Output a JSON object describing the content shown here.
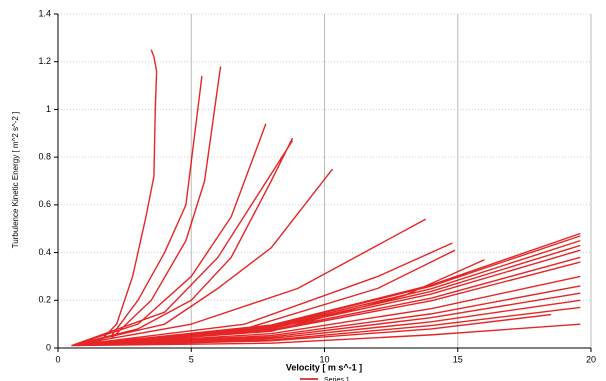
{
  "chart_data": {
    "type": "line",
    "xlabel": "Velocity [ m s^-1 ]",
    "ylabel": "Turbulence Kinetic Energy [ m^2 s^-2 ]",
    "xlim": [
      0,
      20
    ],
    "ylim": [
      0,
      1.4
    ],
    "xticks": [
      0,
      5,
      10,
      15,
      20
    ],
    "yticks": [
      0,
      0.2,
      0.4,
      0.6,
      0.8,
      1,
      1.2,
      1.4
    ],
    "grid": true,
    "legend": "bottom",
    "series": [
      {
        "name": "Series 1",
        "color": "#e00000",
        "x": [
          0.5,
          1.5,
          2.2,
          2.8,
          3.3,
          3.6,
          3.65,
          3.7,
          3.6,
          3.5,
          null,
          0.5,
          2,
          3,
          4,
          4.8,
          5.4,
          null,
          0.5,
          2,
          3.5,
          4.8,
          5.5,
          6.1,
          null,
          0.5,
          3,
          5,
          6.5,
          7.8,
          null,
          0.5,
          3,
          5,
          6.5,
          8,
          8.8,
          null,
          0.5,
          4,
          6,
          8.8,
          null,
          0.5,
          4,
          6,
          8,
          10.3,
          null,
          0.5,
          5,
          9,
          13.8,
          null,
          0.5,
          7,
          12,
          14.8,
          null,
          0.5,
          7,
          12,
          14.9,
          null,
          0.5,
          8,
          13,
          16,
          null,
          0.5,
          8,
          14,
          19.6,
          null,
          0.5,
          8,
          14,
          19.6,
          null,
          0.5,
          8,
          14,
          19.6,
          null,
          0.5,
          8,
          14,
          19.6,
          null,
          0.5,
          8,
          14,
          19.6,
          null,
          0.5,
          8,
          14,
          19.6,
          null,
          0.5,
          8,
          14,
          19.6,
          null,
          0.5,
          8,
          14,
          19.6,
          null,
          0.5,
          8,
          14,
          19.6,
          null,
          0.5,
          8,
          14,
          19.6,
          null,
          0.5,
          8,
          14,
          19.6,
          null,
          0.5,
          8,
          14,
          19.6,
          null,
          0.5,
          8,
          14,
          19.6,
          null,
          0.5,
          8,
          14,
          18.5
        ],
        "values": [
          0.01,
          0.02,
          0.1,
          0.3,
          0.55,
          0.72,
          1.0,
          1.16,
          1.22,
          1.25,
          null,
          0.01,
          0.05,
          0.2,
          0.4,
          0.6,
          1.14,
          null,
          0.01,
          0.04,
          0.2,
          0.45,
          0.7,
          1.18,
          null,
          0.01,
          0.1,
          0.3,
          0.55,
          0.94,
          null,
          0.01,
          0.08,
          0.2,
          0.38,
          0.7,
          0.88,
          null,
          0.01,
          0.15,
          0.38,
          0.87,
          null,
          0.01,
          0.1,
          0.25,
          0.42,
          0.75,
          null,
          0.01,
          0.1,
          0.25,
          0.54,
          null,
          0.01,
          0.1,
          0.3,
          0.44,
          null,
          0.01,
          0.08,
          0.25,
          0.41,
          null,
          0.01,
          0.07,
          0.22,
          0.37,
          null,
          0.01,
          0.096,
          0.264,
          0.48,
          null,
          0.01,
          0.094,
          0.259,
          0.47,
          null,
          0.01,
          0.09,
          0.248,
          0.45,
          null,
          0.01,
          0.086,
          0.237,
          0.43,
          null,
          0.01,
          0.082,
          0.226,
          0.41,
          null,
          0.01,
          0.076,
          0.209,
          0.38,
          null,
          0.01,
          0.072,
          0.198,
          0.36,
          null,
          0.01,
          0.06,
          0.165,
          0.3,
          null,
          0.01,
          0.052,
          0.143,
          0.26,
          null,
          0.01,
          0.046,
          0.127,
          0.23,
          null,
          0.01,
          0.04,
          0.11,
          0.2,
          null,
          0.01,
          0.034,
          0.094,
          0.17,
          null,
          0.01,
          0.02,
          0.055,
          0.1,
          null,
          0.01,
          0.03,
          0.08,
          0.14
        ]
      }
    ]
  }
}
